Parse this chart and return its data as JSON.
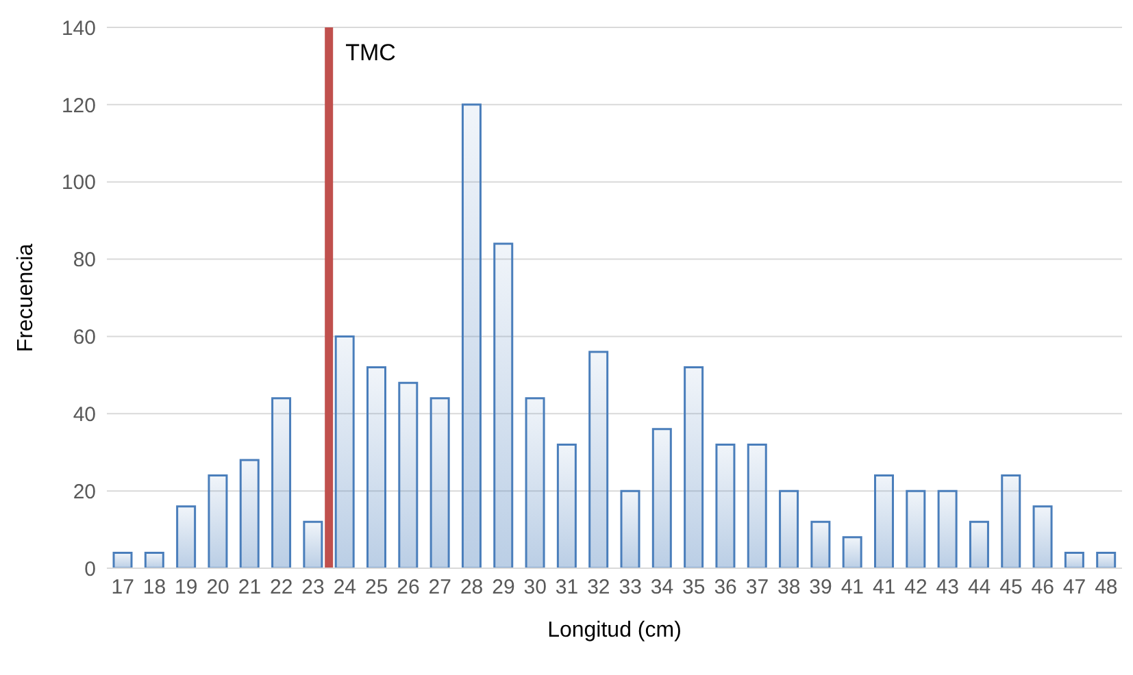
{
  "chart_data": {
    "type": "bar",
    "xlabel": "Longitud (cm)",
    "ylabel": "Frecuencia",
    "categories": [
      "17",
      "18",
      "19",
      "20",
      "21",
      "22",
      "23",
      "24",
      "25",
      "26",
      "27",
      "28",
      "29",
      "30",
      "31",
      "32",
      "33",
      "34",
      "35",
      "36",
      "37",
      "38",
      "39",
      "41",
      "41",
      "42",
      "43",
      "44",
      "45",
      "46",
      "47",
      "48"
    ],
    "values": [
      4,
      4,
      16,
      24,
      28,
      44,
      12,
      60,
      52,
      48,
      44,
      120,
      84,
      44,
      32,
      56,
      20,
      36,
      52,
      32,
      32,
      20,
      12,
      8,
      24,
      20,
      20,
      12,
      24,
      16,
      4,
      4
    ],
    "color": "#4a7ebb",
    "ylim": [
      0,
      140
    ],
    "yticks": [
      0,
      20,
      40,
      60,
      80,
      100,
      120,
      140
    ],
    "grid": "y",
    "legend": false,
    "ref_lines": [
      {
        "axis": "x",
        "value": "24",
        "label": "TMC",
        "color": "#c0504d"
      }
    ]
  }
}
